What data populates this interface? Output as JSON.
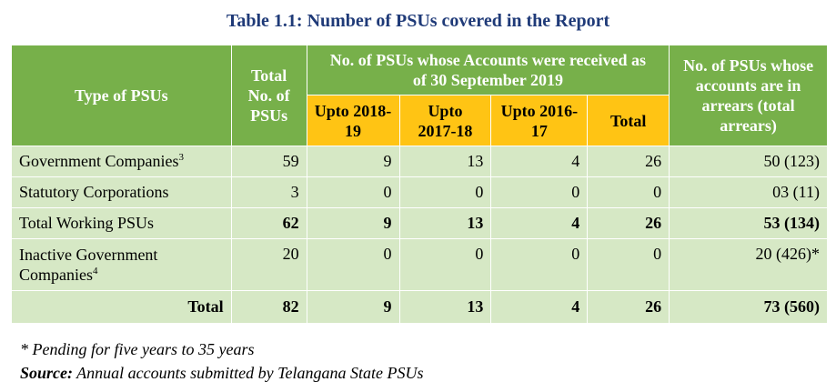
{
  "title": "Table 1.1: Number of PSUs covered in the Report",
  "headers": {
    "type": "Type of PSUs",
    "total": "Total No. of PSUs",
    "received": "No. of PSUs whose Accounts were received as of 30 September 2019",
    "sub": [
      "Upto 2018-19",
      "Upto 2017-18",
      "Upto 2016-17",
      "Total"
    ],
    "arrears": "No. of PSUs whose accounts are in arrears (total arrears)"
  },
  "rows": [
    {
      "label": "Government Companies",
      "sup": "3",
      "total": "59",
      "c1": "9",
      "c2": "13",
      "c3": "4",
      "c4": "26",
      "arrears": "50 (123)"
    },
    {
      "label": "Statutory Corporations",
      "sup": "",
      "total": "3",
      "c1": "0",
      "c2": "0",
      "c3": "0",
      "c4": "0",
      "arrears": "03 (11)"
    },
    {
      "label": "Total Working PSUs",
      "sup": "",
      "total": "62",
      "c1": "9",
      "c2": "13",
      "c3": "4",
      "c4": "26",
      "arrears": "53 (134)"
    },
    {
      "label": "Inactive Government Companies",
      "sup": "4",
      "total": "20",
      "c1": "0",
      "c2": "0",
      "c3": "0",
      "c4": "0",
      "arrears": "20 (426)*"
    },
    {
      "label": "Total",
      "sup": "",
      "total": "82",
      "c1": "9",
      "c2": "13",
      "c3": "4",
      "c4": "26",
      "arrears": "73 (560)"
    }
  ],
  "footnote": "* Pending for five years to 35 years",
  "source": {
    "label": "Source:",
    "text": " Annual accounts submitted by Telangana State PSUs"
  }
}
